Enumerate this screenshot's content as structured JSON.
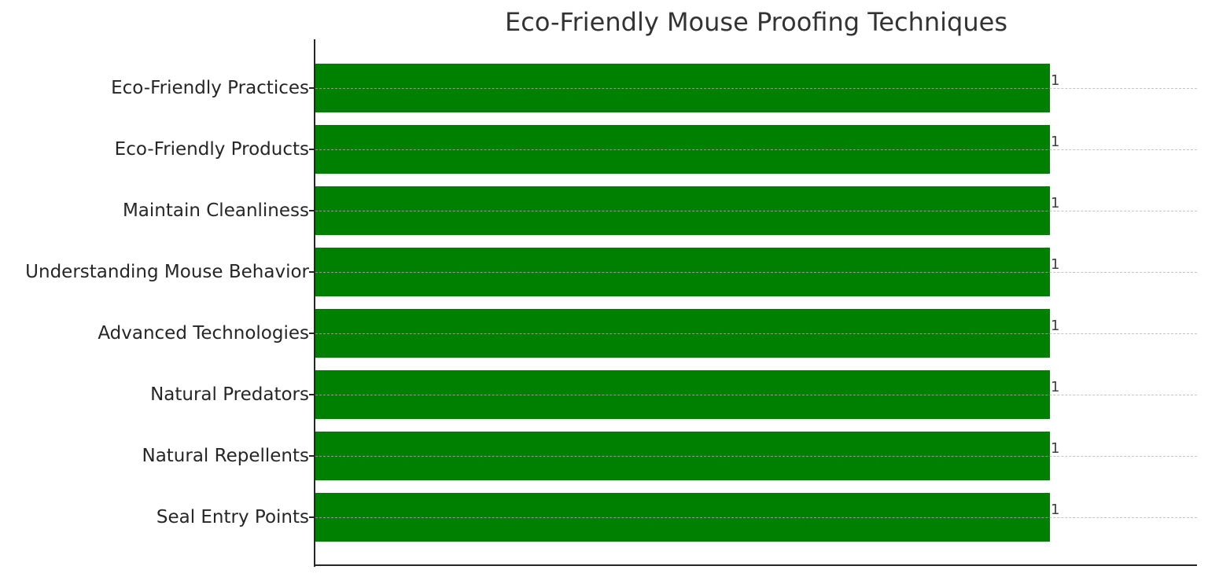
{
  "chart_data": {
    "type": "bar",
    "orientation": "horizontal",
    "title": "Eco-Friendly Mouse Proofing Techniques",
    "xlabel": "",
    "ylabel": "",
    "categories": [
      "Seal Entry Points",
      "Natural Repellents",
      "Natural Predators",
      "Advanced Technologies",
      "Understanding Mouse Behavior",
      "Maintain Cleanliness",
      "Eco-Friendly Products",
      "Eco-Friendly Practices"
    ],
    "values": [
      1,
      1,
      1,
      1,
      1,
      1,
      1,
      1
    ],
    "data_labels": [
      "1",
      "1",
      "1",
      "1",
      "1",
      "1",
      "1",
      "1"
    ],
    "xlim": [
      0,
      1.2
    ],
    "x_ticks_visible": false,
    "grid": {
      "axis": "y",
      "style": "dashed",
      "visible": true
    },
    "legend": null,
    "bar_color": "#008000"
  },
  "rows_top_to_bottom": [
    {
      "label": "Eco-Friendly Practices",
      "value_label": "1"
    },
    {
      "label": "Eco-Friendly Products",
      "value_label": "1"
    },
    {
      "label": "Maintain Cleanliness",
      "value_label": "1"
    },
    {
      "label": "Understanding Mouse Behavior",
      "value_label": "1"
    },
    {
      "label": "Advanced Technologies",
      "value_label": "1"
    },
    {
      "label": "Natural Predators",
      "value_label": "1"
    },
    {
      "label": "Natural Repellents",
      "value_label": "1"
    },
    {
      "label": "Seal Entry Points",
      "value_label": "1"
    }
  ]
}
